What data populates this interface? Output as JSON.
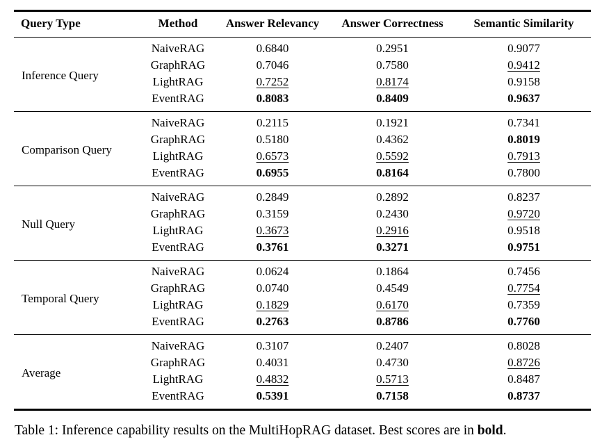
{
  "table": {
    "columns": [
      "Query Type",
      "Method",
      "Answer Relevancy",
      "Answer Correctness",
      "Semantic Similarity"
    ],
    "groups": [
      {
        "query_type": "Inference Query",
        "rows": [
          {
            "method": "NaiveRAG",
            "values": [
              {
                "v": "0.6840"
              },
              {
                "v": "0.2951"
              },
              {
                "v": "0.9077"
              }
            ]
          },
          {
            "method": "GraphRAG",
            "values": [
              {
                "v": "0.7046"
              },
              {
                "v": "0.7580"
              },
              {
                "v": "0.9412",
                "u": true
              }
            ]
          },
          {
            "method": "LightRAG",
            "values": [
              {
                "v": "0.7252",
                "u": true
              },
              {
                "v": "0.8174",
                "u": true
              },
              {
                "v": "0.9158"
              }
            ]
          },
          {
            "method": "EventRAG",
            "values": [
              {
                "v": "0.8083",
                "b": true
              },
              {
                "v": "0.8409",
                "b": true
              },
              {
                "v": "0.9637",
                "b": true
              }
            ]
          }
        ]
      },
      {
        "query_type": "Comparison Query",
        "rows": [
          {
            "method": "NaiveRAG",
            "values": [
              {
                "v": "0.2115"
              },
              {
                "v": "0.1921"
              },
              {
                "v": "0.7341"
              }
            ]
          },
          {
            "method": "GraphRAG",
            "values": [
              {
                "v": "0.5180"
              },
              {
                "v": "0.4362"
              },
              {
                "v": "0.8019",
                "b": true
              }
            ]
          },
          {
            "method": "LightRAG",
            "values": [
              {
                "v": "0.6573",
                "u": true
              },
              {
                "v": "0.5592",
                "u": true
              },
              {
                "v": "0.7913",
                "u": true
              }
            ]
          },
          {
            "method": "EventRAG",
            "values": [
              {
                "v": "0.6955",
                "b": true
              },
              {
                "v": "0.8164",
                "b": true
              },
              {
                "v": "0.7800"
              }
            ]
          }
        ]
      },
      {
        "query_type": "Null Query",
        "rows": [
          {
            "method": "NaiveRAG",
            "values": [
              {
                "v": "0.2849"
              },
              {
                "v": "0.2892"
              },
              {
                "v": "0.8237"
              }
            ]
          },
          {
            "method": "GraphRAG",
            "values": [
              {
                "v": "0.3159"
              },
              {
                "v": "0.2430"
              },
              {
                "v": "0.9720",
                "u": true
              }
            ]
          },
          {
            "method": "LightRAG",
            "values": [
              {
                "v": "0.3673",
                "u": true
              },
              {
                "v": "0.2916",
                "u": true
              },
              {
                "v": "0.9518"
              }
            ]
          },
          {
            "method": "EventRAG",
            "values": [
              {
                "v": "0.3761",
                "b": true
              },
              {
                "v": "0.3271",
                "b": true
              },
              {
                "v": "0.9751",
                "b": true
              }
            ]
          }
        ]
      },
      {
        "query_type": "Temporal Query",
        "rows": [
          {
            "method": "NaiveRAG",
            "values": [
              {
                "v": "0.0624"
              },
              {
                "v": "0.1864"
              },
              {
                "v": "0.7456"
              }
            ]
          },
          {
            "method": "GraphRAG",
            "values": [
              {
                "v": "0.0740"
              },
              {
                "v": "0.4549"
              },
              {
                "v": "0.7754",
                "u": true
              }
            ]
          },
          {
            "method": "LightRAG",
            "values": [
              {
                "v": "0.1829",
                "u": true
              },
              {
                "v": "0.6170",
                "u": true
              },
              {
                "v": "0.7359"
              }
            ]
          },
          {
            "method": "EventRAG",
            "values": [
              {
                "v": "0.2763",
                "b": true
              },
              {
                "v": "0.8786",
                "b": true
              },
              {
                "v": "0.7760",
                "b": true
              }
            ]
          }
        ]
      },
      {
        "query_type": "Average",
        "rows": [
          {
            "method": "NaiveRAG",
            "values": [
              {
                "v": "0.3107"
              },
              {
                "v": "0.2407"
              },
              {
                "v": "0.8028"
              }
            ]
          },
          {
            "method": "GraphRAG",
            "values": [
              {
                "v": "0.4031"
              },
              {
                "v": "0.4730"
              },
              {
                "v": "0.8726",
                "u": true
              }
            ]
          },
          {
            "method": "LightRAG",
            "values": [
              {
                "v": "0.4832",
                "u": true
              },
              {
                "v": "0.5713",
                "u": true
              },
              {
                "v": "0.8487"
              }
            ]
          },
          {
            "method": "EventRAG",
            "values": [
              {
                "v": "0.5391",
                "b": true
              },
              {
                "v": "0.7158",
                "b": true
              },
              {
                "v": "0.8737",
                "b": true
              }
            ]
          }
        ]
      }
    ]
  },
  "caption": {
    "prefix": "Table 1: Inference capability results on the MultiHopRAG dataset. Best scores are in ",
    "bold_word": "bold",
    "suffix": "."
  },
  "colors": {
    "text": "#000000",
    "background": "#ffffff",
    "rule": "#000000"
  }
}
